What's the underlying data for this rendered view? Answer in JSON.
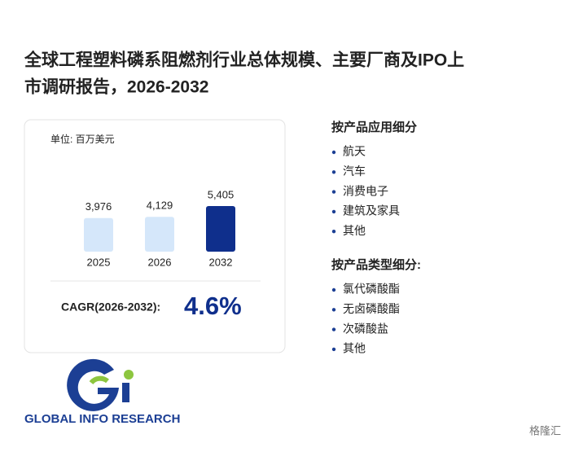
{
  "title_lines": [
    "全球工程塑料磷系阻燃剂行业总体规模、主要厂商及IPO上",
    "市调研报告，2026-2032"
  ],
  "chart_data": {
    "type": "bar",
    "unit": "单位: 百万美元",
    "categories": [
      "2025",
      "2026",
      "2032"
    ],
    "values": [
      3976,
      4129,
      5405
    ],
    "value_labels": [
      "3,976",
      "4,129",
      "5,405"
    ],
    "colors": [
      "#d5e7fa",
      "#d5e7fa",
      "#0f2f8c"
    ]
  },
  "cagr": {
    "label": "CAGR(2026-2032):",
    "value": "4.6%"
  },
  "segments": [
    {
      "heading": "按产品应用细分",
      "items": [
        "航天",
        "汽车",
        "消费电子",
        "建筑及家具",
        "其他"
      ]
    },
    {
      "heading": "按产品类型细分:",
      "items": [
        "氯代磷酸酯",
        "无卤磷酸酯",
        "次磷酸盐",
        "其他"
      ]
    }
  ],
  "logo": "GLOBAL INFO RESEARCH",
  "source": "格隆汇"
}
